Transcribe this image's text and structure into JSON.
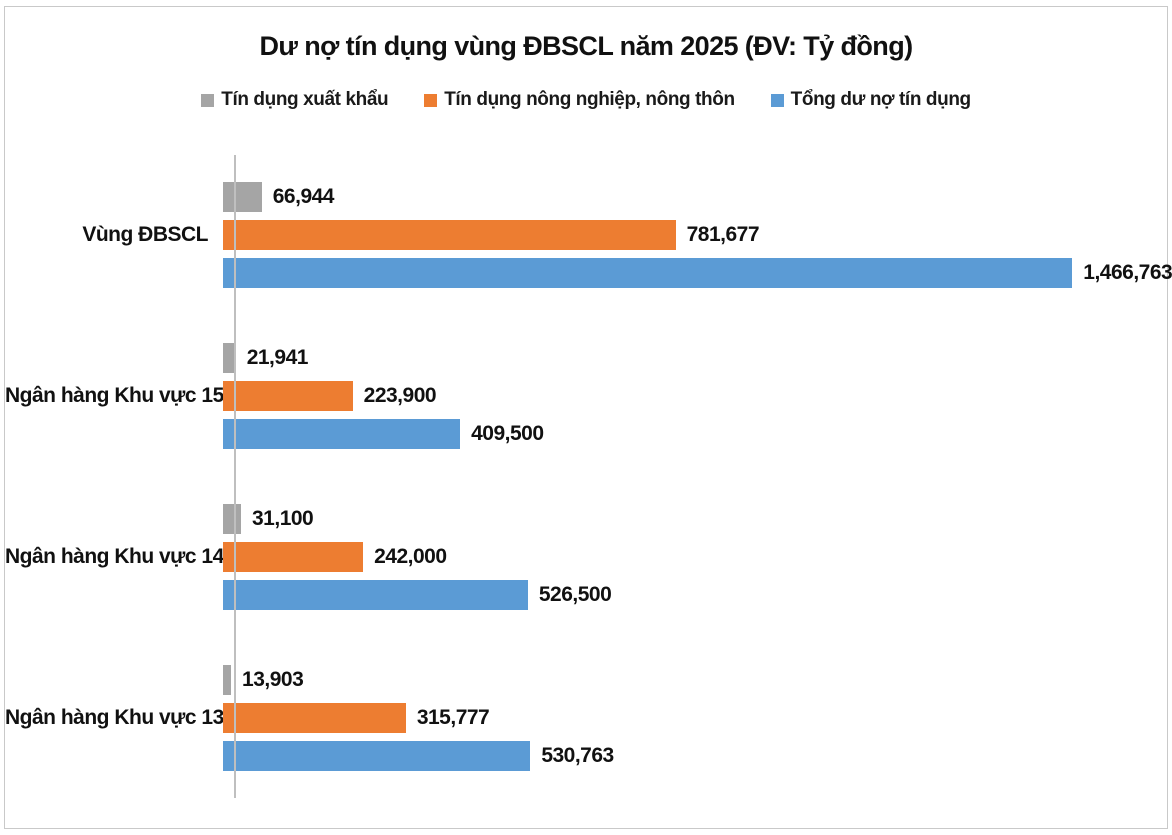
{
  "frame": {
    "background": "#ffffff",
    "border_color": "#c9c9c9"
  },
  "chart_data": {
    "type": "bar",
    "orientation": "horizontal",
    "title": "Dư nợ tín dụng vùng ĐBSCL năm 2025 (ĐV: Tỷ đồng)",
    "categories": [
      "Vùng ĐBSCL",
      "Ngân hàng Khu vực 15",
      "Ngân hàng Khu vực 14",
      "Ngân hàng Khu vực 13"
    ],
    "series": [
      {
        "name": "Tín dụng xuất khẩu",
        "color": "#A5A5A5",
        "values": [
          66944,
          21941,
          31100,
          13903
        ],
        "labels": [
          "66,944",
          "21,941",
          "31,100",
          "13,903"
        ]
      },
      {
        "name": "Tín dụng nông nghiệp, nông thôn",
        "color": "#ED7D31",
        "values": [
          781677,
          223900,
          242000,
          315777
        ],
        "labels": [
          "781,677",
          "223,900",
          "242,000",
          "315,777"
        ]
      },
      {
        "name": "Tổng dư nợ tín dụng",
        "color": "#5B9BD5",
        "values": [
          1466763,
          409500,
          526500,
          530763
        ],
        "labels": [
          "1,466,763",
          "409,500",
          "526,500",
          "530,763"
        ]
      }
    ],
    "xlim": [
      0,
      1620000
    ],
    "grid": false,
    "legend_position": "top",
    "value_labels": true,
    "axis_line_color": "#BFBFBF",
    "xlabel": "",
    "ylabel": ""
  }
}
